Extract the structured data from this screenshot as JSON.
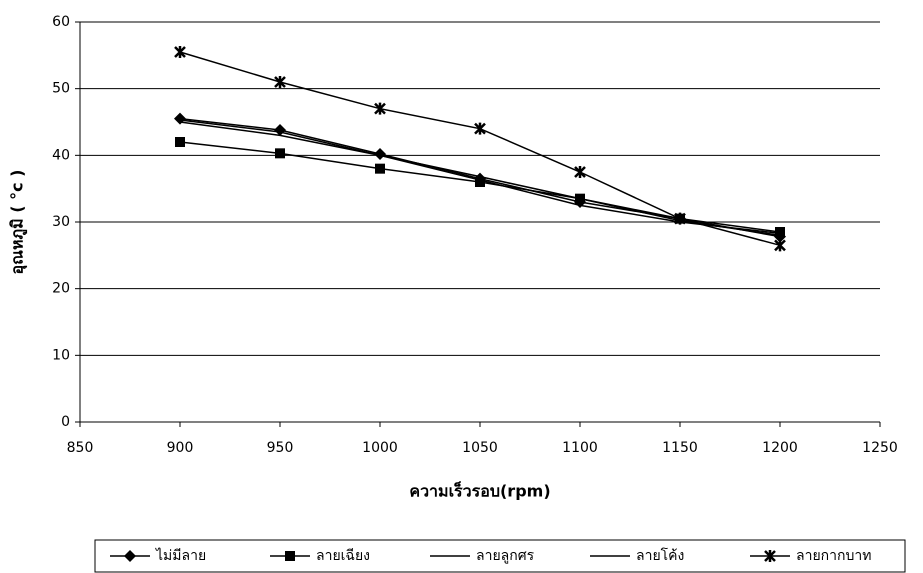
{
  "chart_data": {
    "type": "line",
    "x_label": "ความเร็วรอบ(rpm)",
    "y_label": "อุณหภูมิ ( °c )",
    "x": [
      900,
      950,
      1000,
      1050,
      1100,
      1150,
      1200
    ],
    "series": [
      {
        "name": "ไม่มีลาย",
        "color": "#000000",
        "marker": "diamond",
        "values": [
          45.5,
          43.8,
          40.2,
          36.5,
          33,
          30.5,
          27.8
        ]
      },
      {
        "name": "ลายเฉียง",
        "color": "#000000",
        "marker": "square",
        "values": [
          42,
          40.3,
          38,
          36,
          33.5,
          30.5,
          28.5
        ]
      },
      {
        "name": "ลายลูกศร",
        "color": "#000000",
        "marker": "none",
        "values": [
          45.3,
          43.5,
          40,
          36.8,
          33.5,
          30.2,
          28
        ]
      },
      {
        "name": "ลายโค้ง",
        "color": "#000000",
        "marker": "none",
        "values": [
          45,
          43,
          40,
          36.3,
          32.5,
          30,
          28.3
        ]
      },
      {
        "name": "ลายกากบาท",
        "color": "#000000",
        "marker": "star",
        "values": [
          55.5,
          51,
          47,
          44,
          37.5,
          30.5,
          26.5
        ]
      }
    ],
    "xlim": [
      850,
      1250
    ],
    "xticks": [
      850,
      900,
      950,
      1000,
      1050,
      1100,
      1150,
      1200,
      1250
    ],
    "ylim": [
      0,
      60
    ],
    "yticks": [
      0,
      10,
      20,
      30,
      40,
      50,
      60
    ],
    "grid": true,
    "legend": "bottom"
  }
}
